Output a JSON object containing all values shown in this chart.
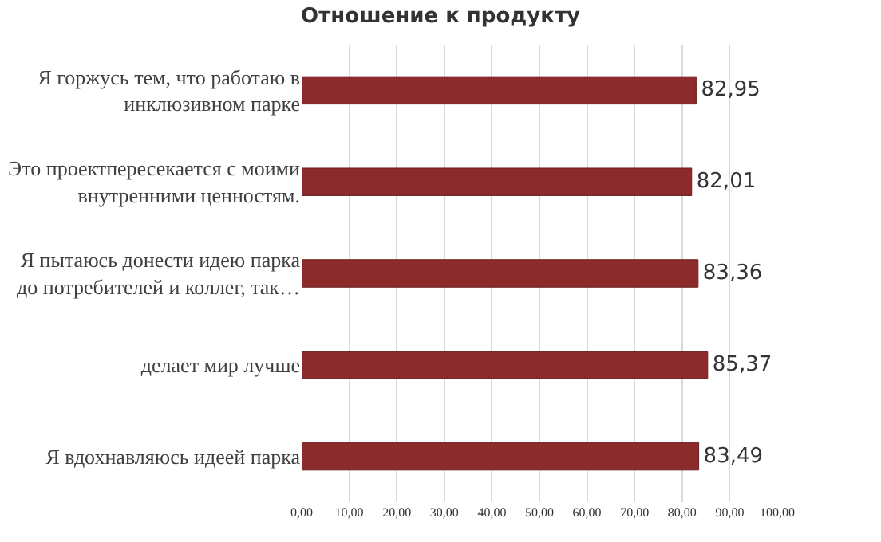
{
  "chart_data": {
    "type": "bar",
    "orientation": "horizontal",
    "title": "Отношение к продукту",
    "categories": [
      "Я горжусь тем, что работаю в инклюзивном парке",
      "Это проектпересекается с моими внутренними ценностям.",
      "Я пытаюсь донести идею парка до потребителей и коллег, так…",
      "делает мир лучше",
      "Я вдохнавляюсь идеей парка"
    ],
    "values": [
      82.95,
      82.01,
      83.36,
      85.37,
      83.49
    ],
    "value_labels": [
      "82,95",
      "82,01",
      "83,36",
      "85,37",
      "83,49"
    ],
    "color": "#8b2b2b",
    "xlim": [
      0,
      100
    ],
    "xticks": [
      {
        "value": 0,
        "label": "0,00"
      },
      {
        "value": 10,
        "label": "10,00"
      },
      {
        "value": 20,
        "label": "20,00"
      },
      {
        "value": 30,
        "label": "30,00"
      },
      {
        "value": 40,
        "label": "40,00"
      },
      {
        "value": 50,
        "label": "50,00"
      },
      {
        "value": 60,
        "label": "60,00"
      },
      {
        "value": 70,
        "label": "70,00"
      },
      {
        "value": 80,
        "label": "80,00"
      },
      {
        "value": 90,
        "label": "90,00"
      },
      {
        "value": 100,
        "label": "100,00"
      }
    ],
    "grid": "x"
  }
}
